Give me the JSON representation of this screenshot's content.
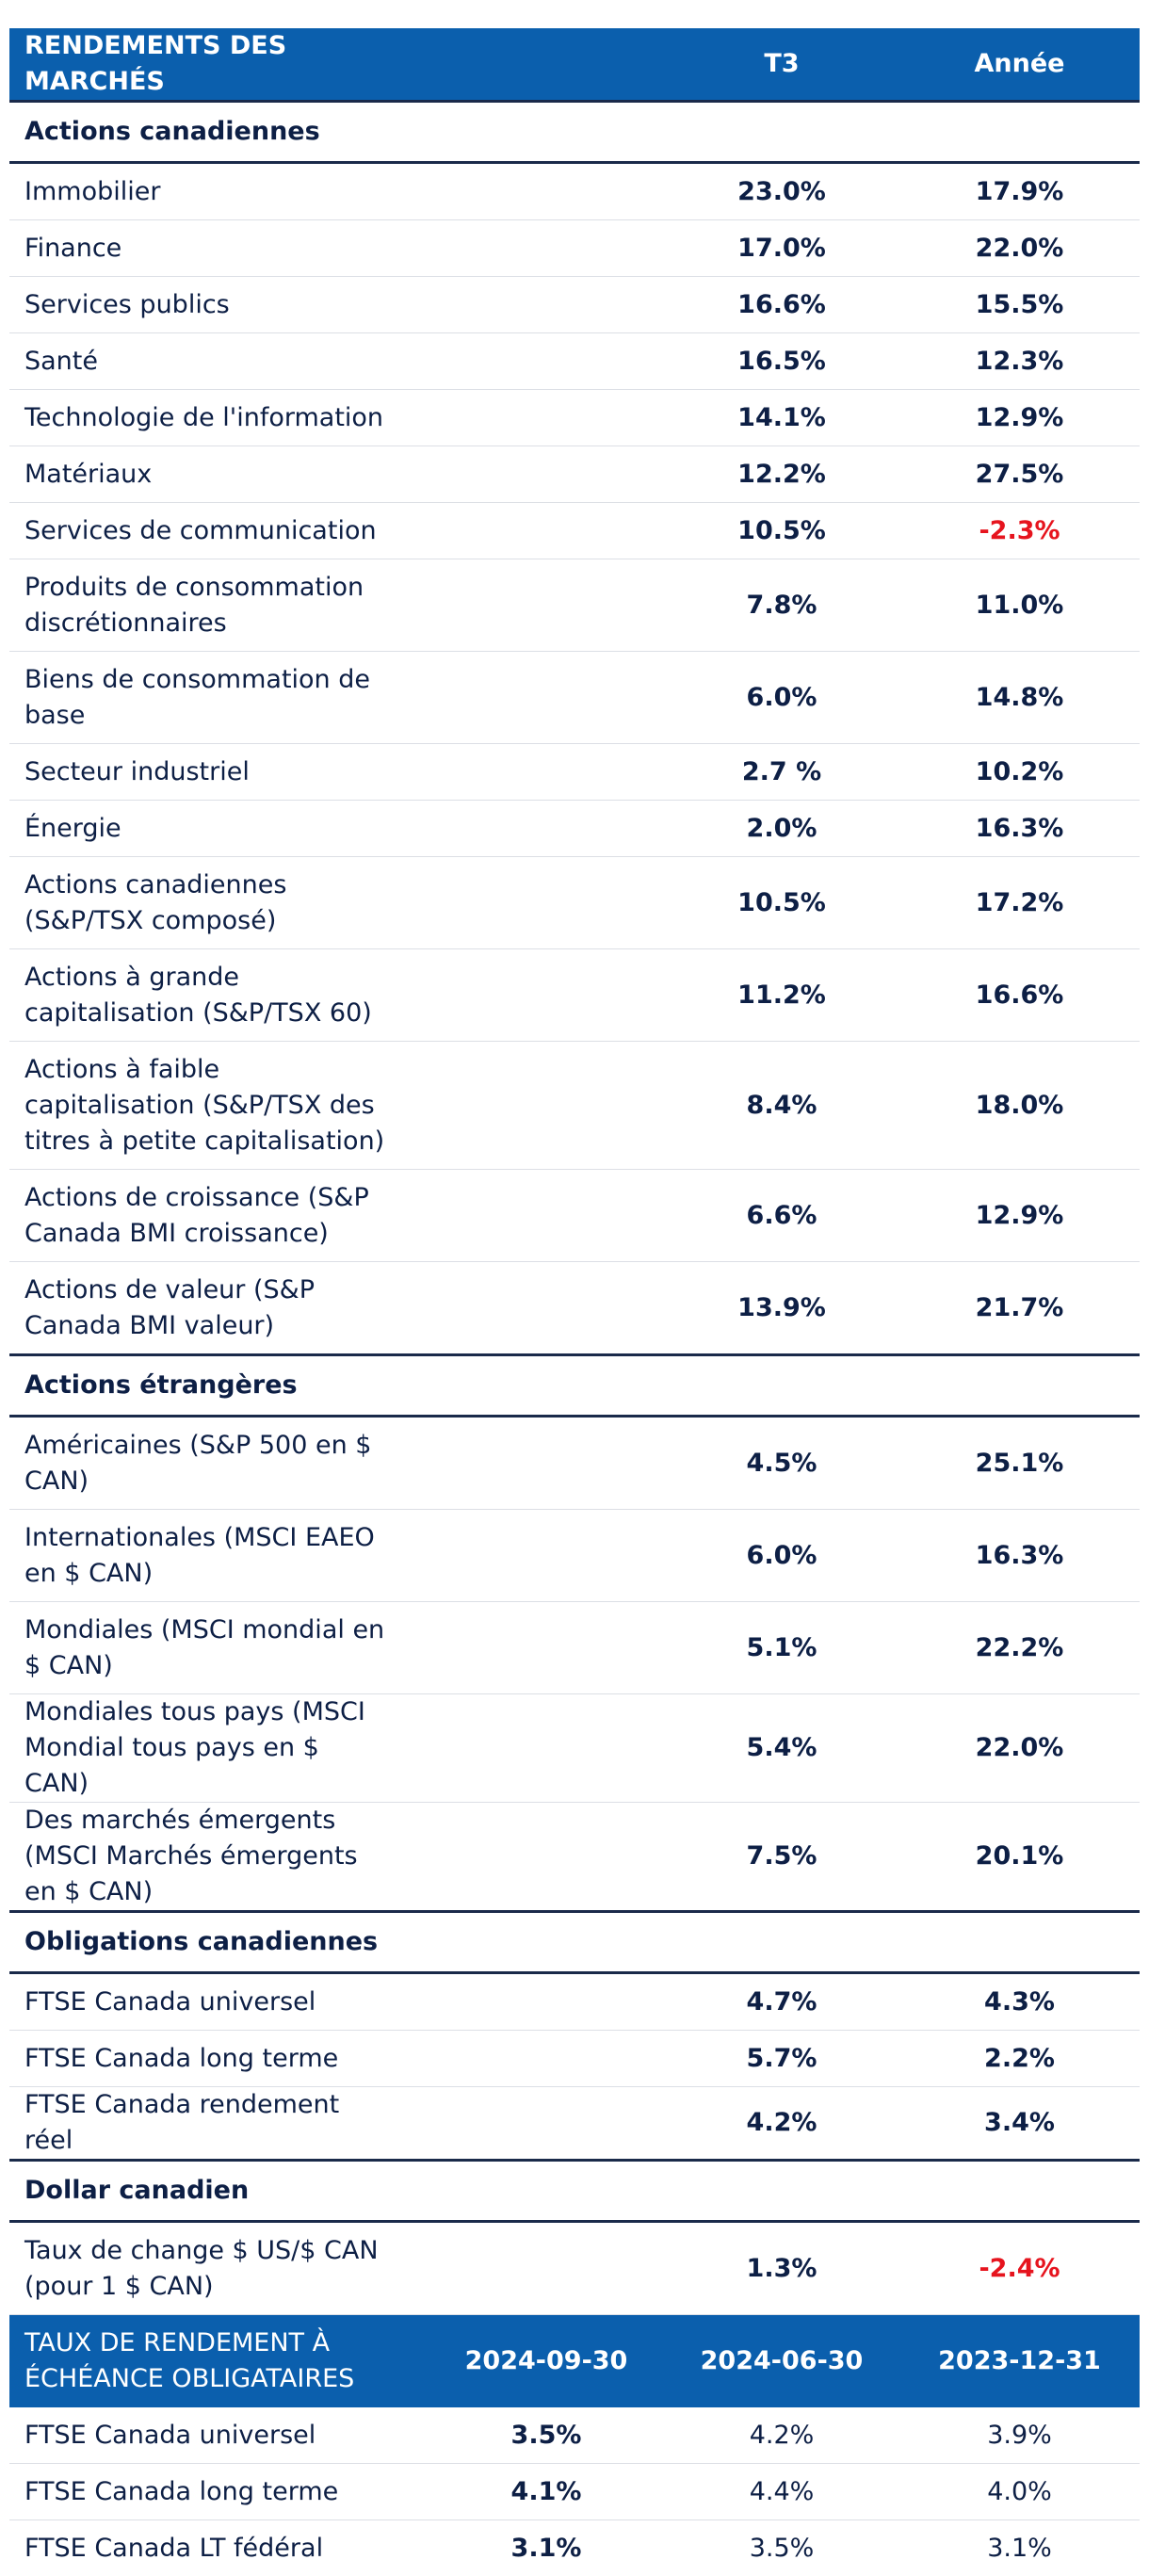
{
  "header": {
    "title": "RENDEMENTS DES MARCHÉS",
    "col_q": "T3",
    "col_year": "Année"
  },
  "sections": [
    {
      "title": "Actions canadiennes",
      "rows": [
        {
          "name": "Immobilier",
          "q": "23.0%",
          "year": "17.9%"
        },
        {
          "name": "Finance",
          "q": "17.0%",
          "year": "22.0%"
        },
        {
          "name": "Services publics",
          "q": "16.6%",
          "year": "15.5%"
        },
        {
          "name": "Santé",
          "q": "16.5%",
          "year": "12.3%"
        },
        {
          "name": "Technologie de l'information",
          "q": "14.1%",
          "year": "12.9%"
        },
        {
          "name": "Matériaux",
          "q": "12.2%",
          "year": "27.5%"
        },
        {
          "name": "Services de communication",
          "q": "10.5%",
          "year": "-2.3%"
        },
        {
          "name": "Produits de consommation discrétionnaires",
          "q": "7.8%",
          "year": "11.0%"
        },
        {
          "name": "Biens de consommation de base",
          "q": "6.0%",
          "year": "14.8%"
        },
        {
          "name": "Secteur industriel",
          "q": "2.7 %",
          "year": "10.2%"
        },
        {
          "name": "Énergie",
          "q": "2.0%",
          "year": "16.3%"
        },
        {
          "name": "Actions canadiennes (S&P/TSX composé)",
          "q": "10.5%",
          "year": "17.2%"
        },
        {
          "name": "Actions à grande capitalisation (S&P/TSX 60)",
          "q": "11.2%",
          "year": "16.6%"
        },
        {
          "name": "Actions à faible capitalisation (S&P/TSX des titres à petite capitalisation)",
          "q": "8.4%",
          "year": "18.0%"
        },
        {
          "name": "Actions de croissance (S&P Canada BMI croissance)",
          "q": "6.6%",
          "year": "12.9%"
        },
        {
          "name": "Actions de valeur (S&P Canada BMI valeur)",
          "q": "13.9%",
          "year": "21.7%"
        }
      ]
    },
    {
      "title": "Actions étrangères",
      "rows": [
        {
          "name": "Américaines (S&P 500 en $ CAN)",
          "q": "4.5%",
          "year": "25.1%"
        },
        {
          "name": "Internationales (MSCI EAEO en $ CAN)",
          "q": "6.0%",
          "year": "16.3%"
        },
        {
          "name": "Mondiales (MSCI mondial en $ CAN)",
          "q": "5.1%",
          "year": "22.2%"
        },
        {
          "name": "Mondiales tous pays (MSCI Mondial tous pays en $ CAN)",
          "q": "5.4%",
          "year": "22.0%"
        },
        {
          "name": "Des marchés émergents (MSCI Marchés émergents en $ CAN)",
          "q": "7.5%",
          "year": "20.1%"
        }
      ]
    },
    {
      "title": "Obligations canadiennes",
      "rows": [
        {
          "name": "FTSE Canada universel",
          "q": "4.7%",
          "year": "4.3%"
        },
        {
          "name": "FTSE Canada long terme",
          "q": "5.7%",
          "year": "2.2%"
        },
        {
          "name": "FTSE Canada rendement réel",
          "q": "4.2%",
          "year": "3.4%"
        }
      ]
    },
    {
      "title": "Dollar canadien",
      "rows": [
        {
          "name": "Taux de change $ US/$ CAN (pour 1 $ CAN)",
          "q": "1.3%",
          "year": "-2.4%"
        }
      ]
    }
  ],
  "yields": {
    "title": "TAUX DE RENDEMENT À ÉCHÉANCE OBLIGATAIRES",
    "col1": "2024-09-30",
    "col2": "2024-06-30",
    "col3": "2023-12-31",
    "rows": [
      {
        "name": "FTSE Canada universel",
        "v1": "3.5%",
        "v2": "4.2%",
        "v3": "3.9%"
      },
      {
        "name": "FTSE Canada long terme",
        "v1": "4.1%",
        "v2": "4.4%",
        "v3": "4.0%"
      },
      {
        "name": "FTSE Canada LT fédéral",
        "v1": "3.1%",
        "v2": "3.5%",
        "v3": "3.1%"
      }
    ]
  },
  "colors": {
    "header_bg": "#0b5fad",
    "text": "#0d1f45",
    "negative": "#e6141e"
  }
}
